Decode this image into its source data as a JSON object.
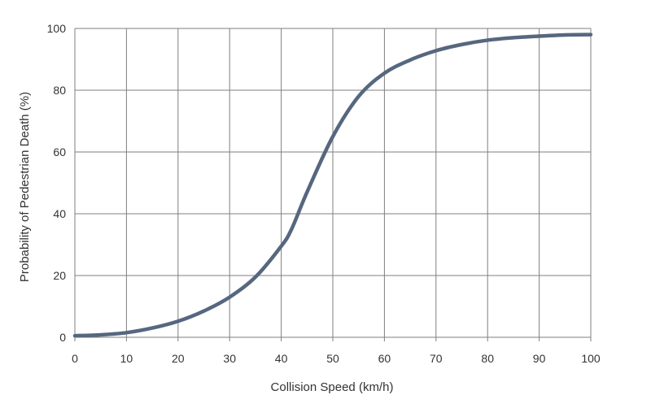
{
  "chart_data": {
    "type": "line",
    "xlabel": "Collision Speed (km/h)",
    "ylabel": "Probability of Pedestrian Death (%)",
    "xlim": [
      0,
      100
    ],
    "ylim": [
      0,
      100
    ],
    "x_ticks": [
      "0",
      "10",
      "20",
      "30",
      "40",
      "50",
      "60",
      "70",
      "80",
      "90",
      "100"
    ],
    "y_ticks": [
      "0",
      "20",
      "40",
      "60",
      "80",
      "100"
    ],
    "grid": true,
    "series": [
      {
        "x": [
          0,
          5,
          10,
          15,
          20,
          25,
          30,
          35,
          40,
          42,
          45,
          50,
          55,
          60,
          65,
          70,
          75,
          80,
          85,
          90,
          95,
          100
        ],
        "y": [
          0.5,
          0.8,
          1.5,
          3.0,
          5.2,
          8.5,
          13.0,
          19.5,
          29.5,
          35.0,
          47.0,
          65.0,
          78.0,
          85.5,
          89.8,
          92.8,
          94.8,
          96.2,
          97.0,
          97.5,
          97.9,
          98.0
        ]
      }
    ],
    "colors": {
      "line": "#56677f",
      "grid": "#7f7f7f"
    }
  }
}
